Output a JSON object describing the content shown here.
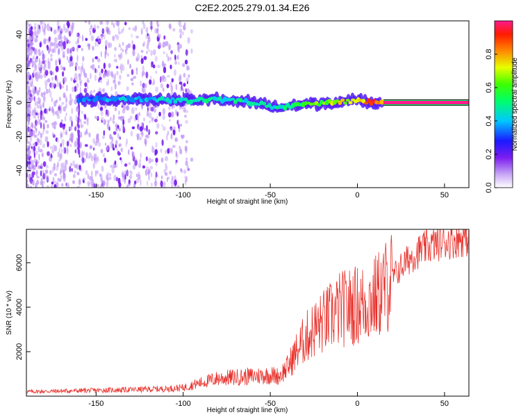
{
  "title": "C2E2.2025.279.01.34.E26",
  "chart_data": [
    {
      "type": "heatmap",
      "name": "spectrogram",
      "xlabel": "Height of straight line (km)",
      "ylabel": "Frequency (Hz)",
      "xlim": [
        -190,
        64
      ],
      "ylim": [
        -50,
        48
      ],
      "xticks": [
        -150,
        -100,
        -50,
        0,
        50
      ],
      "yticks": [
        -40,
        -20,
        0,
        20,
        40
      ],
      "colorbar": {
        "label": "Normalized spectral amplitude",
        "range": [
          0,
          1
        ],
        "ticks": [
          0.0,
          0.2,
          0.4,
          0.6,
          0.8
        ],
        "tick_labels": [
          "0.0",
          "0.2",
          "0.4",
          "0.6",
          "0.8"
        ]
      },
      "band": [
        {
          "x": -160,
          "freq": 2,
          "amp": 0.35
        },
        {
          "x": -140,
          "freq": 2,
          "amp": 0.4
        },
        {
          "x": -120,
          "freq": 2,
          "amp": 0.42
        },
        {
          "x": -100,
          "freq": 1,
          "amp": 0.45
        },
        {
          "x": -80,
          "freq": 2,
          "amp": 0.5
        },
        {
          "x": -60,
          "freq": 0,
          "amp": 0.48
        },
        {
          "x": -45,
          "freq": -3,
          "amp": 0.5
        },
        {
          "x": -30,
          "freq": -1,
          "amp": 0.6
        },
        {
          "x": -15,
          "freq": 0,
          "amp": 0.7
        },
        {
          "x": 0,
          "freq": 1,
          "amp": 0.8
        },
        {
          "x": 15,
          "freq": 0,
          "amp": 0.95
        },
        {
          "x": 64,
          "freq": 0,
          "amp": 1.0
        }
      ]
    },
    {
      "type": "line",
      "name": "snr",
      "xlabel": "Height of straight line (km)",
      "ylabel": "SNR (10 * v/v)",
      "xlim": [
        -190,
        64
      ],
      "ylim": [
        0,
        7500
      ],
      "xticks": [
        -150,
        -100,
        -50,
        0,
        50
      ],
      "yticks": [
        2000,
        4000,
        6000
      ],
      "color": "#e8302a",
      "x": [
        -190,
        -170,
        -150,
        -130,
        -110,
        -100,
        -90,
        -80,
        -70,
        -60,
        -50,
        -45,
        -40,
        -35,
        -30,
        -25,
        -20,
        -15,
        -10,
        -5,
        0,
        5,
        10,
        15,
        20,
        25,
        30,
        35,
        40,
        45,
        50,
        55,
        60,
        64
      ],
      "y": [
        200,
        230,
        260,
        290,
        330,
        380,
        600,
        800,
        850,
        900,
        950,
        900,
        1300,
        2000,
        2600,
        3000,
        3300,
        3600,
        3900,
        4000,
        4100,
        4200,
        4400,
        4800,
        5300,
        5800,
        6200,
        6500,
        6700,
        6850,
        6950,
        7000,
        7100,
        7100
      ]
    }
  ]
}
